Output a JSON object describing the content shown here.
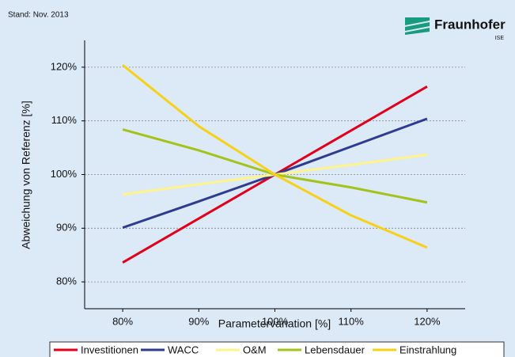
{
  "chart_data": {
    "type": "line",
    "note_text": "Stand: Nov. 2013",
    "logo": {
      "name": "Fraunhofer",
      "sub": "ISE"
    },
    "x_label": "Parametervariation [%]",
    "y_label": "Abweichung von Referenz [%]",
    "x": [
      80,
      90,
      100,
      110,
      120
    ],
    "xlim": [
      75,
      125
    ],
    "xticks": [
      {
        "value": 80,
        "label": "80%"
      },
      {
        "value": 90,
        "label": "90%"
      },
      {
        "value": 100,
        "label": "100%"
      },
      {
        "value": 110,
        "label": "110%"
      },
      {
        "value": 120,
        "label": "120%"
      }
    ],
    "ylim": [
      75,
      125
    ],
    "yticks": [
      {
        "value": 80,
        "label": "80%"
      },
      {
        "value": 90,
        "label": "90%"
      },
      {
        "value": 100,
        "label": "100%"
      },
      {
        "value": 110,
        "label": "110%"
      },
      {
        "value": 120,
        "label": "120%"
      }
    ],
    "grid": true,
    "legend": "bottom",
    "series": [
      {
        "name": "Investitionen",
        "color": "#e2001a",
        "values": [
          83.6,
          91.8,
          100,
          108.2,
          116.4
        ]
      },
      {
        "name": "WACC",
        "color": "#2e3b8f",
        "values": [
          90.1,
          95.0,
          100,
          105.2,
          110.4
        ]
      },
      {
        "name": "O&M",
        "color": "#fff48c",
        "values": [
          96.3,
          98.2,
          100,
          101.8,
          103.7
        ]
      },
      {
        "name": "Lebensdauer",
        "color": "#a3c21a",
        "values": [
          108.4,
          104.5,
          100,
          97.6,
          94.8
        ]
      },
      {
        "name": "Einstrahlung",
        "color": "#f7d117",
        "values": [
          120.4,
          109.0,
          100,
          92.4,
          86.4
        ]
      }
    ]
  }
}
